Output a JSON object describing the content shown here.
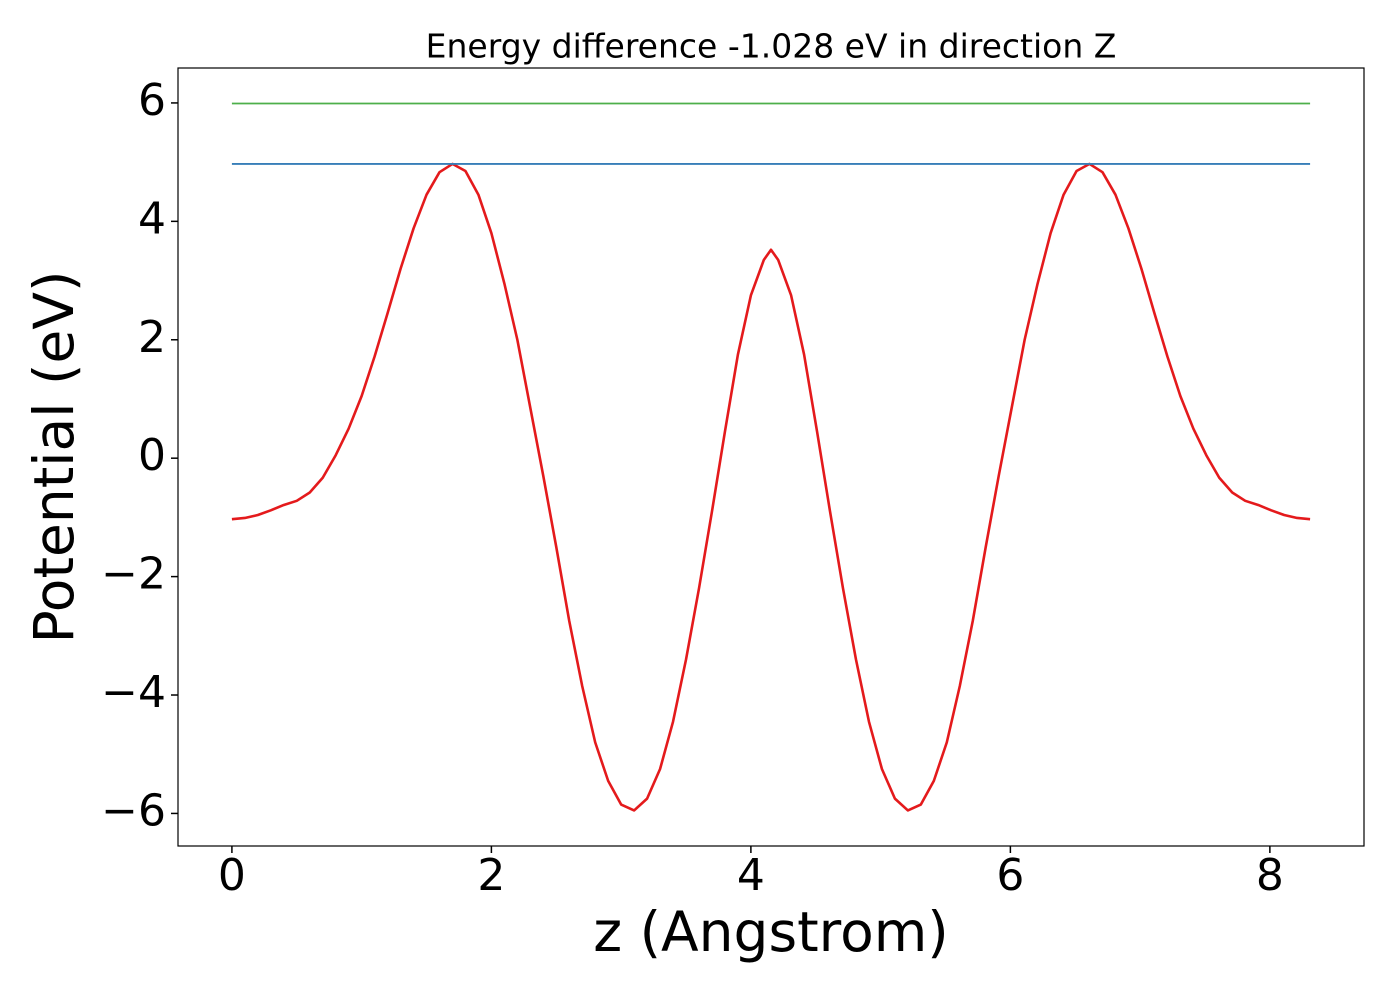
{
  "chart_data": {
    "type": "line",
    "title": "Energy difference -1.028 eV in direction Z",
    "xlabel": "z (Angstrom)",
    "ylabel": "Potential (eV)",
    "xlim": [
      -0.4155,
      8.7255
    ],
    "ylim": [
      -6.55,
      6.59
    ],
    "xticks": [
      0,
      2,
      4,
      6,
      8
    ],
    "yticks": [
      {
        "value": -6,
        "label": "−6"
      },
      {
        "value": -4,
        "label": "−4"
      },
      {
        "value": -2,
        "label": "−2"
      },
      0,
      2,
      4,
      6
    ],
    "grid": false,
    "series": [
      {
        "color": "#e41a1c",
        "x": [
          0,
          0.1,
          0.2,
          0.3,
          0.4,
          0.5,
          0.6,
          0.7,
          0.8,
          0.9,
          1.0,
          1.1,
          1.2,
          1.3,
          1.4,
          1.5,
          1.6,
          1.7,
          1.8,
          1.9,
          2.0,
          2.1,
          2.2,
          2.3,
          2.4,
          2.5,
          2.6,
          2.7,
          2.8,
          2.9,
          3.0,
          3.1,
          3.2,
          3.3,
          3.4,
          3.5,
          3.6,
          3.7,
          3.8,
          3.9,
          4.0,
          4.1,
          4.155,
          4.21,
          4.31,
          4.41,
          4.51,
          4.61,
          4.71,
          4.81,
          4.91,
          5.01,
          5.11,
          5.21,
          5.31,
          5.41,
          5.51,
          5.61,
          5.71,
          5.81,
          5.91,
          6.01,
          6.11,
          6.21,
          6.31,
          6.41,
          6.51,
          6.61,
          6.71,
          6.81,
          6.91,
          7.01,
          7.11,
          7.21,
          7.31,
          7.41,
          7.51,
          7.61,
          7.71,
          7.81,
          7.91,
          8.01,
          8.11,
          8.21,
          8.31
        ],
        "values": [
          -1.03,
          -1.01,
          -0.96,
          -0.88,
          -0.79,
          -0.72,
          -0.58,
          -0.33,
          0.05,
          0.5,
          1.05,
          1.72,
          2.45,
          3.2,
          3.88,
          4.45,
          4.83,
          4.97,
          4.85,
          4.45,
          3.8,
          2.95,
          2.0,
          0.85,
          -0.3,
          -1.5,
          -2.75,
          -3.85,
          -4.8,
          -5.45,
          -5.85,
          -5.95,
          -5.75,
          -5.25,
          -4.45,
          -3.4,
          -2.2,
          -0.9,
          0.45,
          1.75,
          2.75,
          3.35,
          3.52,
          3.35,
          2.75,
          1.75,
          0.45,
          -0.9,
          -2.2,
          -3.4,
          -4.45,
          -5.25,
          -5.75,
          -5.95,
          -5.85,
          -5.45,
          -4.8,
          -3.85,
          -2.75,
          -1.5,
          -0.3,
          0.85,
          2.0,
          2.95,
          3.8,
          4.45,
          4.85,
          4.97,
          4.83,
          4.45,
          3.88,
          3.2,
          2.45,
          1.72,
          1.05,
          0.5,
          0.05,
          -0.33,
          -0.58,
          -0.72,
          -0.79,
          -0.88,
          -0.96,
          -1.01,
          -1.03
        ]
      },
      {
        "color": "#377eb8",
        "x": [
          0,
          8.31
        ],
        "values": [
          4.97,
          4.97
        ]
      },
      {
        "color": "#4daf4a",
        "x": [
          0,
          8.31
        ],
        "values": [
          5.99,
          5.99
        ]
      }
    ]
  }
}
